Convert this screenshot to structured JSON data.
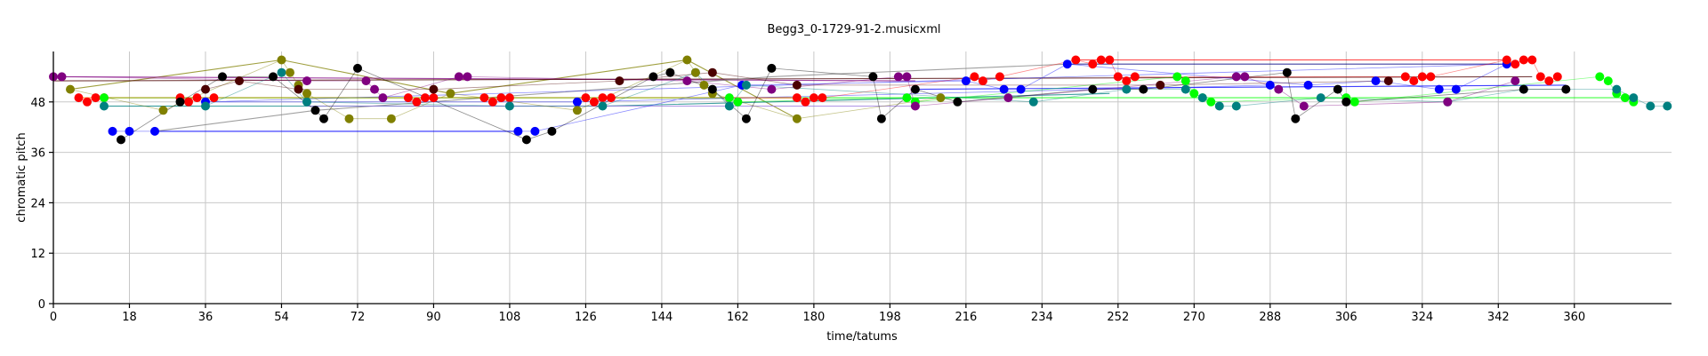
{
  "chart_data": {
    "type": "scatter",
    "title": "Begg3_0-1729-91-2.musicxml",
    "xlabel": "time/tatums",
    "ylabel": "chromatic pitch",
    "xlim": [
      0,
      383
    ],
    "ylim": [
      0,
      60
    ],
    "xticks": [
      0,
      18,
      36,
      54,
      72,
      90,
      108,
      126,
      144,
      162,
      180,
      198,
      216,
      234,
      252,
      270,
      288,
      306,
      324,
      342,
      360
    ],
    "yticks": [
      0,
      12,
      24,
      36,
      48
    ],
    "grid": true,
    "series": [
      {
        "color": "#0000ff",
        "points": [
          [
            14,
            41
          ],
          [
            18,
            41
          ],
          [
            24,
            41
          ],
          [
            110,
            41
          ],
          [
            114,
            41
          ],
          [
            163,
            52
          ],
          [
            216,
            53
          ],
          [
            225,
            51
          ],
          [
            229,
            51
          ],
          [
            240,
            57
          ],
          [
            297,
            52
          ],
          [
            313,
            53
          ],
          [
            328,
            51
          ],
          [
            332,
            51
          ],
          [
            344,
            57
          ],
          [
            36,
            48
          ],
          [
            124,
            48
          ],
          [
            288,
            52
          ]
        ]
      },
      {
        "color": "#ff0000",
        "points": [
          [
            6,
            49
          ],
          [
            8,
            48
          ],
          [
            10,
            49
          ],
          [
            12,
            49
          ],
          [
            30,
            49
          ],
          [
            32,
            48
          ],
          [
            34,
            49
          ],
          [
            38,
            49
          ],
          [
            84,
            49
          ],
          [
            86,
            48
          ],
          [
            88,
            49
          ],
          [
            90,
            49
          ],
          [
            102,
            49
          ],
          [
            104,
            48
          ],
          [
            106,
            49
          ],
          [
            108,
            49
          ],
          [
            126,
            49
          ],
          [
            128,
            48
          ],
          [
            130,
            49
          ],
          [
            132,
            49
          ],
          [
            176,
            49
          ],
          [
            178,
            48
          ],
          [
            180,
            49
          ],
          [
            182,
            49
          ],
          [
            218,
            54
          ],
          [
            220,
            53
          ],
          [
            224,
            54
          ],
          [
            242,
            58
          ],
          [
            246,
            57
          ],
          [
            248,
            58
          ],
          [
            250,
            58
          ],
          [
            252,
            54
          ],
          [
            254,
            53
          ],
          [
            256,
            54
          ],
          [
            320,
            54
          ],
          [
            322,
            53
          ],
          [
            324,
            54
          ],
          [
            326,
            54
          ],
          [
            344,
            58
          ],
          [
            346,
            57
          ],
          [
            348,
            58
          ],
          [
            350,
            58
          ],
          [
            352,
            54
          ],
          [
            354,
            53
          ],
          [
            356,
            54
          ]
        ]
      },
      {
        "color": "#00ff00",
        "points": [
          [
            12,
            49
          ],
          [
            160,
            49
          ],
          [
            162,
            48
          ],
          [
            202,
            49
          ],
          [
            204,
            48
          ],
          [
            266,
            54
          ],
          [
            268,
            53
          ],
          [
            270,
            50
          ],
          [
            272,
            49
          ],
          [
            274,
            48
          ],
          [
            306,
            49
          ],
          [
            308,
            48
          ],
          [
            366,
            54
          ],
          [
            368,
            53
          ],
          [
            370,
            50
          ],
          [
            372,
            49
          ],
          [
            374,
            48
          ]
        ]
      },
      {
        "color": "#008080",
        "points": [
          [
            12,
            47
          ],
          [
            36,
            47
          ],
          [
            54,
            55
          ],
          [
            60,
            48
          ],
          [
            108,
            47
          ],
          [
            130,
            47
          ],
          [
            152,
            55
          ],
          [
            160,
            47
          ],
          [
            164,
            52
          ],
          [
            232,
            48
          ],
          [
            254,
            51
          ],
          [
            268,
            51
          ],
          [
            272,
            49
          ],
          [
            276,
            47
          ],
          [
            280,
            47
          ],
          [
            300,
            49
          ],
          [
            330,
            48
          ],
          [
            348,
            51
          ],
          [
            370,
            51
          ],
          [
            374,
            49
          ],
          [
            378,
            47
          ],
          [
            382,
            47
          ]
        ]
      },
      {
        "color": "#800080",
        "points": [
          [
            0,
            54
          ],
          [
            2,
            54
          ],
          [
            60,
            53
          ],
          [
            74,
            53
          ],
          [
            76,
            51
          ],
          [
            78,
            49
          ],
          [
            96,
            54
          ],
          [
            98,
            54
          ],
          [
            150,
            53
          ],
          [
            170,
            51
          ],
          [
            200,
            54
          ],
          [
            202,
            54
          ],
          [
            204,
            47
          ],
          [
            226,
            49
          ],
          [
            280,
            54
          ],
          [
            282,
            54
          ],
          [
            290,
            51
          ],
          [
            296,
            47
          ],
          [
            330,
            48
          ],
          [
            346,
            53
          ]
        ]
      },
      {
        "color": "#808000",
        "points": [
          [
            4,
            51
          ],
          [
            26,
            46
          ],
          [
            54,
            58
          ],
          [
            56,
            55
          ],
          [
            58,
            52
          ],
          [
            60,
            50
          ],
          [
            70,
            44
          ],
          [
            80,
            44
          ],
          [
            94,
            50
          ],
          [
            124,
            46
          ],
          [
            150,
            58
          ],
          [
            152,
            55
          ],
          [
            154,
            52
          ],
          [
            156,
            50
          ],
          [
            176,
            44
          ],
          [
            210,
            49
          ]
        ]
      },
      {
        "color": "#000000",
        "points": [
          [
            16,
            39
          ],
          [
            30,
            48
          ],
          [
            40,
            54
          ],
          [
            52,
            54
          ],
          [
            62,
            46
          ],
          [
            64,
            44
          ],
          [
            72,
            56
          ],
          [
            112,
            39
          ],
          [
            118,
            41
          ],
          [
            142,
            54
          ],
          [
            146,
            55
          ],
          [
            156,
            51
          ],
          [
            164,
            44
          ],
          [
            170,
            56
          ],
          [
            194,
            54
          ],
          [
            196,
            44
          ],
          [
            204,
            51
          ],
          [
            214,
            48
          ],
          [
            246,
            51
          ],
          [
            258,
            51
          ],
          [
            292,
            55
          ],
          [
            294,
            44
          ],
          [
            304,
            51
          ],
          [
            306,
            48
          ],
          [
            348,
            51
          ],
          [
            358,
            51
          ]
        ]
      },
      {
        "color": "#4b0000",
        "points": [
          [
            36,
            51
          ],
          [
            44,
            53
          ],
          [
            58,
            51
          ],
          [
            90,
            51
          ],
          [
            134,
            53
          ],
          [
            156,
            55
          ],
          [
            176,
            52
          ],
          [
            262,
            52
          ],
          [
            316,
            53
          ]
        ]
      }
    ],
    "segments": [
      {
        "color": "#808000",
        "points": [
          [
            4,
            51
          ],
          [
            54,
            58
          ],
          [
            94,
            50
          ]
        ]
      },
      {
        "color": "#808000",
        "points": [
          [
            94,
            50
          ],
          [
            150,
            58
          ],
          [
            176,
            44
          ]
        ]
      },
      {
        "color": "#0000ff",
        "points": [
          [
            24,
            41
          ],
          [
            110,
            41
          ]
        ]
      },
      {
        "color": "#000080",
        "points": [
          [
            240,
            57
          ],
          [
            344,
            57
          ]
        ]
      },
      {
        "color": "#ff0000",
        "points": [
          [
            242,
            58
          ],
          [
            344,
            58
          ]
        ]
      },
      {
        "color": "#800080",
        "points": [
          [
            0,
            54
          ],
          [
            204,
            53
          ]
        ]
      },
      {
        "color": "#4b0000",
        "points": [
          [
            0,
            53
          ],
          [
            350,
            54
          ]
        ]
      },
      {
        "color": "#008080",
        "points": [
          [
            12,
            47
          ],
          [
            130,
            47
          ],
          [
            250,
            50
          ]
        ]
      },
      {
        "color": "#00ff00",
        "points": [
          [
            12,
            49
          ],
          [
            374,
            49
          ]
        ]
      },
      {
        "color": "#808080",
        "points": [
          [
            24,
            41
          ],
          [
            62,
            46
          ],
          [
            170,
            54
          ],
          [
            240,
            57
          ]
        ]
      },
      {
        "color": "#ff8000",
        "points": [
          [
            6,
            49
          ],
          [
            176,
            49
          ]
        ]
      },
      {
        "color": "#9370db",
        "points": [
          [
            60,
            47
          ],
          [
            204,
            47
          ]
        ]
      },
      {
        "color": "#0000ff",
        "points": [
          [
            204,
            51
          ],
          [
            358,
            52
          ]
        ]
      }
    ]
  }
}
